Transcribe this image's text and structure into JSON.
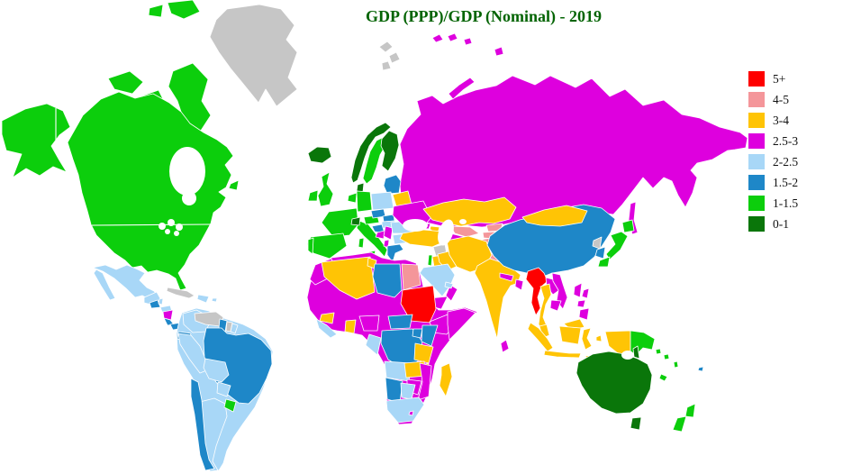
{
  "title": {
    "text": "GDP (PPP)/GDP (Nominal) - 2019",
    "color": "#046404"
  },
  "legend": {
    "items": [
      {
        "label": "5+",
        "category": "5+",
        "color": "#FE0000"
      },
      {
        "label": "4-5",
        "category": "4-5",
        "color": "#F4969A"
      },
      {
        "label": "3-4",
        "category": "3-4",
        "color": "#FFC405"
      },
      {
        "label": "2.5-3",
        "category": "2.5-3",
        "color": "#DE00DE"
      },
      {
        "label": "2-2.5",
        "category": "2-2.5",
        "color": "#A8D7F7"
      },
      {
        "label": "1.5-2",
        "category": "1.5-2",
        "color": "#1E87C8"
      },
      {
        "label": "1-1.5",
        "category": "1-1.5",
        "color": "#0CCE0C"
      },
      {
        "label": "0-1",
        "category": "0-1",
        "color": "#0A760A"
      }
    ]
  },
  "map": {
    "ocean_color": "#FFFFFF",
    "no_data_color": "#C6C6C6",
    "border_color": "#FFFFFF",
    "regions": {
      "greenland": "no-data",
      "canada": "1-1.5",
      "united-states": "1-1.5",
      "mexico": "2-2.5",
      "guatemala": "1.5-2",
      "belize": "2-2.5",
      "honduras": "2-2.5",
      "nicaragua": "2.5-3",
      "costa-rica": "1.5-2",
      "panama": "1.5-2",
      "cuba": "no-data",
      "hispaniola": "2-2.5",
      "puerto-rico": "2-2.5",
      "south-america": "2-2.5",
      "colombia": "2-2.5",
      "peru": "2-2.5",
      "argentina": "2-2.5",
      "venezuela": "no-data",
      "guyana": "1.5-2",
      "suriname": "no-data",
      "french-guiana": "2-2.5",
      "ecuador": "1.5-2",
      "brazil": "1.5-2",
      "bolivia": "2-2.5",
      "paraguay": "2-2.5",
      "uruguay": "1-1.5",
      "chile": "1.5-2",
      "iceland": "0-1",
      "ireland": "1-1.5",
      "united-kingdom": "1-1.5",
      "norway": "0-1",
      "sweden": "1-1.5",
      "finland": "0-1",
      "denmark": "0-1",
      "baltic-states": "1.5-2",
      "belarus": "3-4",
      "poland": "2-2.5",
      "germany": "1-1.5",
      "france": "1-1.5",
      "spain": "1-1.5",
      "portugal": "1-1.5",
      "italy": "1-1.5",
      "switzerland": "0-1",
      "austria": "1-1.5",
      "czechia": "1.5-2",
      "slovakia": "1.5-2",
      "hungary": "2-2.5",
      "slovenia-croatia": "1.5-2",
      "bosnia": "2.5-3",
      "serbia": "2.5-3",
      "albania": "2.5-3",
      "greece": "1.5-2",
      "bulgaria": "2-2.5",
      "romania": "2-2.5",
      "ukraine": "2.5-3",
      "russia": "2.5-3",
      "svalbard": "no-data",
      "turkey": "3-4",
      "syria": "no-data",
      "israel": "1-1.5",
      "jordan": "3-4",
      "iraq": "3-4",
      "iran": "3-4",
      "saudi-arabia": "2-2.5",
      "yemen": "2.5-3",
      "oman": "2.5-3",
      "united-arab-emirates": "2-2.5",
      "georgia": "2.5-3",
      "azerbaijan": "3-4",
      "armenia": "2-2.5",
      "kazakhstan": "3-4",
      "uzbekistan": "4-5",
      "turkmenistan": "2.5-3",
      "kyrgyzstan": "4-5",
      "tajikistan": "4-5",
      "afghanistan": "4-5",
      "pakistan": "4-5",
      "india": "3-4",
      "nepal": "2.5-3",
      "bangladesh": "2.5-3",
      "sri-lanka": "2.5-3",
      "china": "1.5-2",
      "mongolia": "3-4",
      "north-korea": "no-data",
      "south-korea": "1.5-2",
      "japan": "1-1.5",
      "taiwan": "2.5-3",
      "myanmar": "5+",
      "thailand": "3-4",
      "laos": "2.5-3",
      "vietnam": "2.5-3",
      "cambodia": "2.5-3",
      "malaysia": "3-4",
      "indonesia": "3-4",
      "philippines": "2.5-3",
      "papua-new-guinea": "1-1.5",
      "solomon-islands": "1-1.5",
      "vanuatu": "1-1.5",
      "new-caledonia": "1-1.5",
      "fiji": "1.5-2",
      "australia": "0-1",
      "new-zealand": "1-1.5",
      "north-central-africa": "2.5-3",
      "morocco": "2.5-3",
      "algeria": "3-4",
      "tunisia": "3-4",
      "libya": "1.5-2",
      "egypt": "4-5",
      "sudan": "5+",
      "guinea": "3-4",
      "ghana": "3-4",
      "sierra-leone-liberia": "2-2.5",
      "nigeria": "2.5-3",
      "central-african-republic": "1.5-2",
      "dr-congo": "1.5-2",
      "uganda": "1.5-2",
      "kenya": "1.5-2",
      "tanzania": "3-4",
      "gabon-congo": "2-2.5",
      "angola": "2-2.5",
      "zambia": "3-4",
      "malawi": "3-4",
      "namibia": "1.5-2",
      "botswana": "2-2.5",
      "south-africa": "2-2.5",
      "lesotho": "2.5-3",
      "zimbabwe": "2.5-3",
      "mozambique": "2.5-3",
      "ethiopia": "2.5-3",
      "somalia": "2.5-3",
      "madagascar": "3-4"
    }
  }
}
